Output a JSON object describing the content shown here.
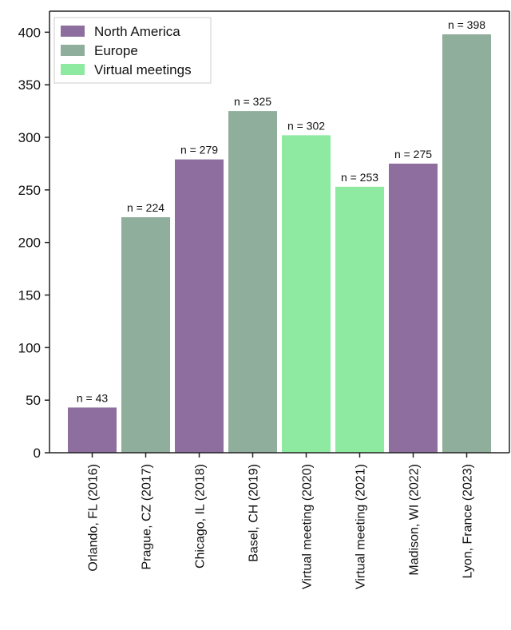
{
  "chart_data": {
    "type": "bar",
    "title": "",
    "xlabel": "",
    "ylabel": "",
    "ylim": [
      0,
      420
    ],
    "yticks": [
      0,
      50,
      100,
      150,
      200,
      250,
      300,
      350,
      400
    ],
    "grid": false,
    "legend_position": "top-left",
    "legend": [
      {
        "name": "North America",
        "color": "#8e6e9e"
      },
      {
        "name": "Europe",
        "color": "#8faf9c"
      },
      {
        "name": "Virtual meetings",
        "color": "#8eeaa0"
      }
    ],
    "categories": [
      "Orlando, FL (2016)",
      "Prague, CZ (2017)",
      "Chicago, IL (2018)",
      "Basel, CH (2019)",
      "Virtual meeting (2020)",
      "Virtual meeting (2021)",
      "Madison, WI (2022)",
      "Lyon, France (2023)"
    ],
    "values": [
      43,
      224,
      279,
      325,
      302,
      253,
      275,
      398
    ],
    "groups": [
      0,
      1,
      0,
      1,
      2,
      2,
      0,
      1
    ],
    "data_labels": [
      "n = 43",
      "n = 224",
      "n = 279",
      "n = 325",
      "n = 302",
      "n = 253",
      "n = 275",
      "n = 398"
    ]
  }
}
